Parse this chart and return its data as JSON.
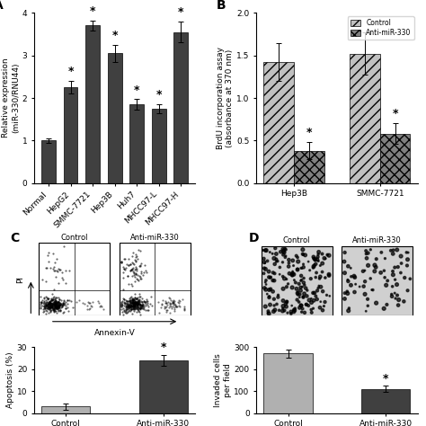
{
  "panel_A": {
    "categories": [
      "Normal",
      "HepG2",
      "SMMC-7721",
      "Hep3B",
      "Huh7",
      "MHCC97-L",
      "MHCC97-H"
    ],
    "values": [
      1.0,
      2.25,
      3.7,
      3.05,
      1.85,
      1.75,
      3.55
    ],
    "errors": [
      0.05,
      0.15,
      0.12,
      0.2,
      0.12,
      0.1,
      0.25
    ],
    "significant": [
      false,
      true,
      true,
      true,
      true,
      true,
      true
    ],
    "ylabel": "Relative expression\n(miR-330/RNU44)",
    "ylim": [
      0,
      4
    ],
    "yticks": [
      0,
      1,
      2,
      3,
      4
    ],
    "bar_color": "#404040",
    "label": "A"
  },
  "panel_B": {
    "groups": [
      "Hep3B",
      "SMMC-7721"
    ],
    "control_values": [
      1.42,
      1.52
    ],
    "anti_values": [
      0.38,
      0.58
    ],
    "control_errors": [
      0.22,
      0.25
    ],
    "anti_errors": [
      0.1,
      0.12
    ],
    "significant_anti": [
      true,
      true
    ],
    "ylabel": "BrdU incorporation assay\n(absorbance at 370 nm)",
    "ylim": [
      0,
      2.0
    ],
    "yticks": [
      0.0,
      0.5,
      1.0,
      1.5,
      2.0
    ],
    "control_hatch": "///",
    "anti_hatch": "xxx",
    "legend_labels": [
      "Control",
      "Anti-miR-330"
    ],
    "label": "B"
  },
  "panel_C_bar": {
    "categories": [
      "Control",
      "Anti-miR-330"
    ],
    "values": [
      3.0,
      24.0
    ],
    "errors": [
      1.5,
      2.5
    ],
    "significant": [
      false,
      true
    ],
    "ylabel": "Apoptosis (%)",
    "ylim": [
      0,
      30
    ],
    "yticks": [
      0,
      10,
      20,
      30
    ],
    "bar_colors": [
      "#b0b0b0",
      "#404040"
    ],
    "label": "C"
  },
  "panel_D_bar": {
    "categories": [
      "Control",
      "Anti-miR-330"
    ],
    "values": [
      270,
      110
    ],
    "errors": [
      20,
      15
    ],
    "significant": [
      false,
      true
    ],
    "ylabel": "Invaded cells\nper field",
    "ylim": [
      0,
      300
    ],
    "yticks": [
      0,
      100,
      200,
      300
    ],
    "bar_colors": [
      "#b0b0b0",
      "#404040"
    ],
    "label": "D"
  },
  "figure_bg": "#ffffff",
  "font_size": 6.5,
  "title_font_size": 8,
  "star_font_size": 9
}
